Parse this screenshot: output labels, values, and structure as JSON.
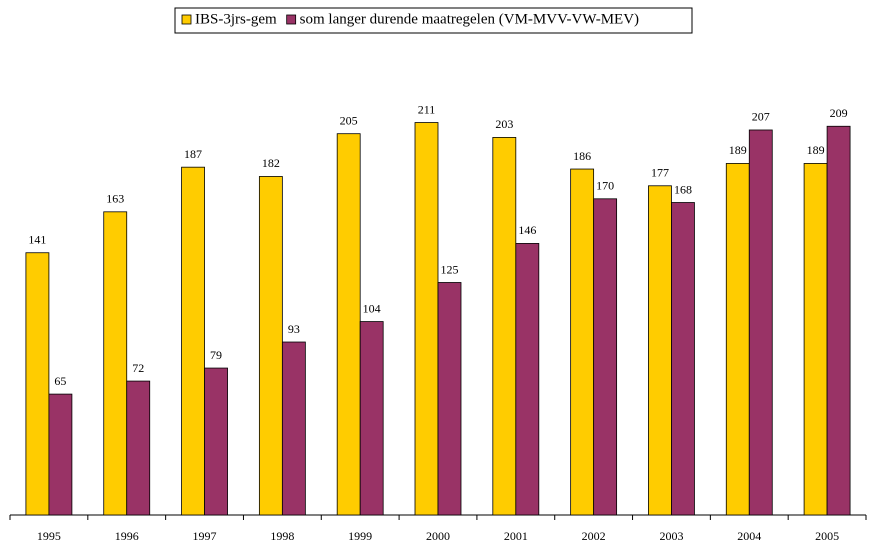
{
  "chart_data": {
    "type": "bar",
    "categories": [
      "1995",
      "1996",
      "1997",
      "1998",
      "1999",
      "2000",
      "2001",
      "2002",
      "2003",
      "2004",
      "2005"
    ],
    "series": [
      {
        "name": "IBS-3jrs-gem",
        "color": "#ffcc00",
        "values": [
          141,
          163,
          187,
          182,
          205,
          211,
          203,
          186,
          177,
          189,
          189
        ]
      },
      {
        "name": "som langer durende maatregelen (VM-MVV-VW-MEV)",
        "color": "#993366",
        "values": [
          65,
          72,
          79,
          93,
          104,
          125,
          146,
          170,
          168,
          207,
          209
        ]
      }
    ],
    "ylim": [
      0,
      250
    ],
    "legend": "top"
  }
}
